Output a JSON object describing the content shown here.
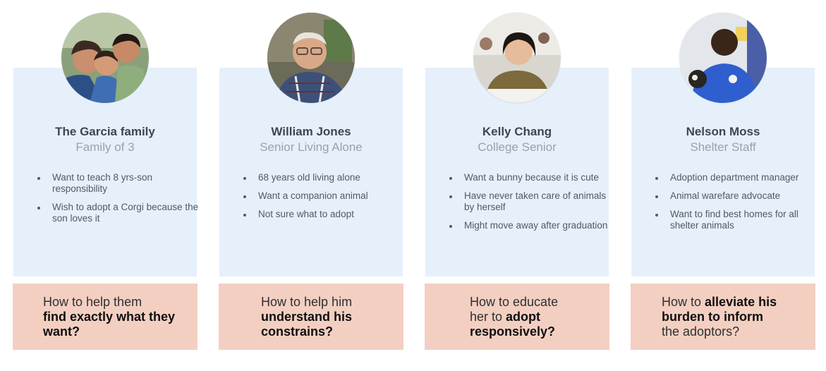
{
  "personas": [
    {
      "name": "The Garcia family",
      "role": "Family of 3",
      "avatar_icon": "family-photo",
      "traits": [
        "Want to teach 8 yrs-son responsibility",
        "Wish to adopt a Corgi because the son loves it"
      ],
      "question": {
        "plain_a": "How to help them",
        "bold": "find exactly what they want?",
        "plain_b": ""
      }
    },
    {
      "name": "William Jones",
      "role": "Senior Living Alone",
      "avatar_icon": "senior-man-photo",
      "traits": [
        "68 years old living alone",
        "Want a companion animal",
        "Not sure what to adopt"
      ],
      "question": {
        "plain_a": "How to help him",
        "bold": "understand his constrains?",
        "plain_b": ""
      }
    },
    {
      "name": "Kelly Chang",
      "role": "College Senior",
      "avatar_icon": "student-photo",
      "traits": [
        "Want a bunny because it is cute",
        "Have never taken care of animals by herself",
        "Might move away after graduation"
      ],
      "question": {
        "plain_a": "How to educate her to",
        "bold": "adopt responsively?",
        "plain_b": ""
      }
    },
    {
      "name": "Nelson Moss",
      "role": "Shelter Staff",
      "avatar_icon": "shelter-staff-photo",
      "traits": [
        "Adoption department manager",
        "Animal warefare advocate",
        "Want to find best homes for all shelter animals"
      ],
      "question": {
        "plain_a": "How to",
        "bold": "alleviate his burden to inform",
        "plain_b": "the adoptors?"
      }
    }
  ],
  "colors": {
    "card_bg": "#e6f0fb",
    "question_bg": "#f3cfc2",
    "name_text": "#3e4651",
    "role_text": "#9aa1a9"
  }
}
